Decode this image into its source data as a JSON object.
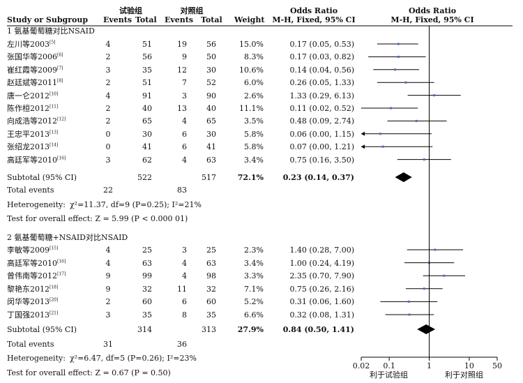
{
  "header": {
    "study": "Study or Subgroup",
    "group_exp": "试验组",
    "group_ctrl": "对照组",
    "events": "Events",
    "total": "Total",
    "weight": "Weight",
    "or_title": "Odds Ratio",
    "or_method": "M-H, Fixed, 95% CI",
    "plot_title": "Odds Ratio",
    "plot_method": "M-H, Fixed, 95% CI"
  },
  "chart_data": {
    "type": "forest",
    "x_scale": "log",
    "x_ticks": [
      0.02,
      0.1,
      1,
      10,
      50
    ],
    "x_tick_labels": [
      "0.02",
      "0.1",
      "1",
      "10",
      "50"
    ],
    "favours_left": "利于试验组",
    "favours_right": "利于对照组",
    "subgroups": [
      {
        "title": "1 氨基葡萄糖对比NSAID",
        "studies": [
          {
            "name": "左川等2003",
            "ref": "[5]",
            "e_events": "4",
            "e_total": "51",
            "c_events": "19",
            "c_total": "56",
            "weight": "15.0%",
            "ci_text": "0.17 (0.05, 0.53)",
            "or": 0.17,
            "lo": 0.05,
            "hi": 0.53
          },
          {
            "name": "张国华等2006",
            "ref": "[6]",
            "e_events": "2",
            "e_total": "56",
            "c_events": "9",
            "c_total": "50",
            "weight": "8.3%",
            "ci_text": "0.17 (0.03, 0.82)",
            "or": 0.17,
            "lo": 0.03,
            "hi": 0.82
          },
          {
            "name": "崔红霞等2009",
            "ref": "[7]",
            "e_events": "3",
            "e_total": "35",
            "c_events": "12",
            "c_total": "30",
            "weight": "10.6%",
            "ci_text": "0.14 (0.04, 0.56)",
            "or": 0.14,
            "lo": 0.04,
            "hi": 0.56
          },
          {
            "name": "赵廷斌等2011",
            "ref": "[8]",
            "e_events": "2",
            "e_total": "51",
            "c_events": "7",
            "c_total": "52",
            "weight": "6.0%",
            "ci_text": "0.26 (0.05, 1.33)",
            "or": 0.26,
            "lo": 0.05,
            "hi": 1.33
          },
          {
            "name": "唐一仑2012",
            "ref": "[10]",
            "e_events": "4",
            "e_total": "91",
            "c_events": "3",
            "c_total": "90",
            "weight": "2.6%",
            "ci_text": "1.33 (0.29, 6.13)",
            "or": 1.33,
            "lo": 0.29,
            "hi": 6.13
          },
          {
            "name": "陈作桓2012",
            "ref": "[11]",
            "e_events": "2",
            "e_total": "40",
            "c_events": "13",
            "c_total": "40",
            "weight": "11.1%",
            "ci_text": "0.11 (0.02, 0.52)",
            "or": 0.11,
            "lo": 0.02,
            "hi": 0.52
          },
          {
            "name": "向成浩等2012",
            "ref": "[12]",
            "e_events": "2",
            "e_total": "65",
            "c_events": "4",
            "c_total": "65",
            "weight": "3.5%",
            "ci_text": "0.48 (0.09, 2.74)",
            "or": 0.48,
            "lo": 0.09,
            "hi": 2.74
          },
          {
            "name": "王忠平2013",
            "ref": "[13]",
            "e_events": "0",
            "e_total": "30",
            "c_events": "6",
            "c_total": "30",
            "weight": "5.8%",
            "ci_text": "0.06 (0.00, 1.15)",
            "or": 0.06,
            "lo": 0.0,
            "hi": 1.15
          },
          {
            "name": "张绍龙2013",
            "ref": "[14]",
            "e_events": "0",
            "e_total": "41",
            "c_events": "6",
            "c_total": "41",
            "weight": "5.8%",
            "ci_text": "0.07 (0.00, 1.21)",
            "or": 0.07,
            "lo": 0.0,
            "hi": 1.21
          },
          {
            "name": "高廷军等2010",
            "ref": "[16]",
            "e_events": "3",
            "e_total": "62",
            "c_events": "4",
            "c_total": "63",
            "weight": "3.4%",
            "ci_text": "0.75 (0.16, 3.50)",
            "or": 0.75,
            "lo": 0.16,
            "hi": 3.5
          }
        ],
        "subtotal": {
          "label": "Subtotal (95% CI)",
          "e_total": "522",
          "c_total": "517",
          "weight": "72.1%",
          "ci_text": "0.23 (0.14, 0.37)",
          "or": 0.23,
          "lo": 0.14,
          "hi": 0.37
        },
        "total_events_label": "Total events",
        "total_events_exp": "22",
        "total_events_ctrl": "83",
        "heterogeneity_label": "Heterogeneity:",
        "heterogeneity_text": "χ²=11.37, df=9 (P=0.25); I²=21%",
        "overall_effect_text": "Test for overall effect: Z = 5.99 (P < 0.000 01)"
      },
      {
        "title": "2 氨基葡萄糖+NSAID对比NSAID",
        "studies": [
          {
            "name": "李敏等2009",
            "ref": "[15]",
            "e_events": "4",
            "e_total": "25",
            "c_events": "3",
            "c_total": "25",
            "weight": "2.3%",
            "ci_text": "1.40 (0.28, 7.00)",
            "or": 1.4,
            "lo": 0.28,
            "hi": 7.0
          },
          {
            "name": "高廷军等2010",
            "ref": "[16]",
            "e_events": "4",
            "e_total": "63",
            "c_events": "4",
            "c_total": "63",
            "weight": "3.4%",
            "ci_text": "1.00 (0.24, 4.19)",
            "or": 1.0,
            "lo": 0.24,
            "hi": 4.19
          },
          {
            "name": "曾伟南等2012",
            "ref": "[17]",
            "e_events": "9",
            "e_total": "99",
            "c_events": "4",
            "c_total": "98",
            "weight": "3.3%",
            "ci_text": "2.35 (0.70, 7.90)",
            "or": 2.35,
            "lo": 0.7,
            "hi": 7.9
          },
          {
            "name": "黎艳东2012",
            "ref": "[18]",
            "e_events": "9",
            "e_total": "32",
            "c_events": "11",
            "c_total": "32",
            "weight": "7.1%",
            "ci_text": "0.75 (0.26, 2.16)",
            "or": 0.75,
            "lo": 0.26,
            "hi": 2.16
          },
          {
            "name": "闵华等2013",
            "ref": "[20]",
            "e_events": "2",
            "e_total": "60",
            "c_events": "6",
            "c_total": "60",
            "weight": "5.2%",
            "ci_text": "0.31 (0.06, 1.60)",
            "or": 0.31,
            "lo": 0.06,
            "hi": 1.6
          },
          {
            "name": "丁国强2013",
            "ref": "[21]",
            "e_events": "3",
            "e_total": "35",
            "c_events": "8",
            "c_total": "35",
            "weight": "6.6%",
            "ci_text": "0.32 (0.08, 1.31)",
            "or": 0.32,
            "lo": 0.08,
            "hi": 1.31
          }
        ],
        "subtotal": {
          "label": "Subtotal (95% CI)",
          "e_total": "314",
          "c_total": "313",
          "weight": "27.9%",
          "ci_text": "0.84 (0.50, 1.41)",
          "or": 0.84,
          "lo": 0.5,
          "hi": 1.41
        },
        "total_events_label": "Total events",
        "total_events_exp": "31",
        "total_events_ctrl": "36",
        "heterogeneity_label": "Heterogeneity:",
        "heterogeneity_text": "χ²=6.47, df=5 (P=0.26); I²=23%",
        "overall_effect_text": "Test for overall effect: Z = 0.67 (P = 0.50)"
      }
    ]
  },
  "colors": {
    "text": "#111111",
    "line": "#000000",
    "square": "#4a6fb5",
    "diamond": "#000000"
  }
}
